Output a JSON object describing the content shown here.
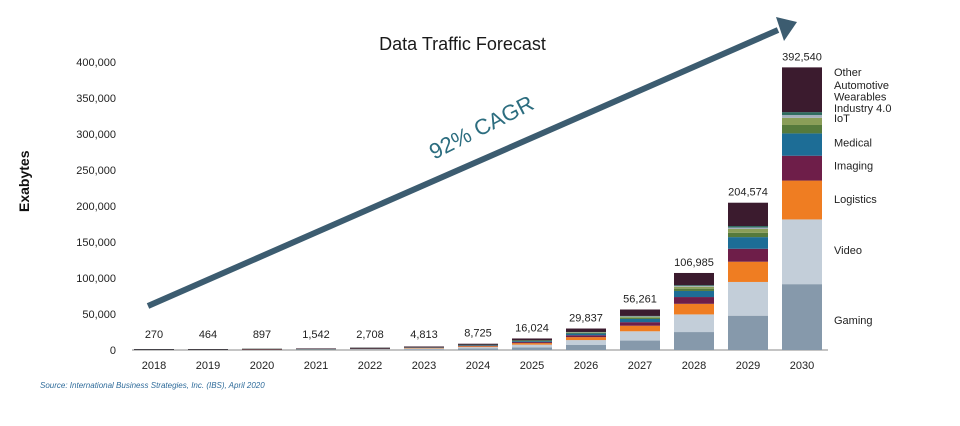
{
  "chart_data": {
    "type": "bar",
    "stacked": true,
    "title": "Data Traffic Forecast",
    "ylabel": "Exabytes",
    "xlabel": "",
    "ylim": [
      0,
      400000
    ],
    "yticks": [
      0,
      50000,
      100000,
      150000,
      200000,
      250000,
      300000,
      350000,
      400000
    ],
    "ytick_labels": [
      "0",
      "50,000",
      "100,000",
      "150,000",
      "200,000",
      "250,000",
      "300,000",
      "350,000",
      "400,000"
    ],
    "categories": [
      "2018",
      "2019",
      "2020",
      "2021",
      "2022",
      "2023",
      "2024",
      "2025",
      "2026",
      "2027",
      "2028",
      "2029",
      "2030"
    ],
    "totals": [
      270,
      464,
      897,
      1542,
      2708,
      4813,
      8725,
      16024,
      29837,
      56261,
      106985,
      204574,
      392540
    ],
    "total_labels": [
      "270",
      "464",
      "897",
      "1,542",
      "2,708",
      "4,813",
      "8,725",
      "16,024",
      "29,837",
      "56,261",
      "106,985",
      "204,574",
      "392,540"
    ],
    "segment_order": [
      "Gaming",
      "Video",
      "Logistics",
      "Imaging",
      "Medical",
      "IoT",
      "Industry 4.0",
      "Wearables",
      "Automotive",
      "Other"
    ],
    "series": [
      {
        "name": "Gaming",
        "color": "#8699ab",
        "values": [
          63,
          108,
          209,
          359,
          631,
          1122,
          2033,
          3734,
          6952,
          13109,
          24926,
          47662,
          91462
        ]
      },
      {
        "name": "Video",
        "color": "#c3ced9",
        "values": [
          62,
          106,
          205,
          353,
          620,
          1102,
          1998,
          3669,
          6832,
          12882,
          24495,
          46833,
          89876
        ]
      },
      {
        "name": "Logistics",
        "color": "#ef7d22",
        "values": [
          37,
          64,
          123,
          212,
          372,
          662,
          1200,
          2203,
          4102,
          7734,
          14708,
          28126,
          53968
        ]
      },
      {
        "name": "Imaging",
        "color": "#6e1e49",
        "values": [
          24,
          41,
          79,
          136,
          238,
          424,
          767,
          1409,
          2624,
          4948,
          9408,
          17990,
          34519
        ]
      },
      {
        "name": "Medical",
        "color": "#1d6d96",
        "values": [
          21,
          37,
          71,
          122,
          214,
          380,
          690,
          1267,
          2358,
          4445,
          8453,
          16163,
          31012
        ]
      },
      {
        "name": "IoT",
        "color": "#567a3c",
        "values": [
          8,
          14,
          27,
          46,
          81,
          143,
          260,
          477,
          888,
          1675,
          3183,
          6088,
          11683
        ]
      },
      {
        "name": "Industry 4.0",
        "color": "#8a9e58",
        "values": [
          7,
          12,
          23,
          39,
          68,
          122,
          221,
          406,
          756,
          1426,
          2710,
          5182,
          9943
        ]
      },
      {
        "name": "Wearables",
        "color": "#a4b0bc",
        "values": [
          3,
          5,
          9,
          16,
          27,
          49,
          88,
          161,
          301,
          567,
          1078,
          2062,
          3957
        ]
      },
      {
        "name": "Automotive",
        "color": "#2e6b5e",
        "values": [
          3,
          5,
          9,
          16,
          27,
          49,
          88,
          161,
          301,
          567,
          1078,
          2062,
          3957
        ]
      },
      {
        "name": "Other",
        "color": "#3b1b2e",
        "values": [
          42,
          72,
          142,
          243,
          430,
          760,
          1380,
          2537,
          4723,
          8908,
          16946,
          32406,
          62163
        ]
      }
    ],
    "right_labels": [
      {
        "text": "Other",
        "value": 386000
      },
      {
        "text": "Automotive",
        "value": 368000
      },
      {
        "text": "Wearables",
        "value": 352000
      },
      {
        "text": "Industry 4.0",
        "value": 336000
      },
      {
        "text": "IoT",
        "value": 322000
      },
      {
        "text": "Medical",
        "value": 288000
      },
      {
        "text": "Imaging",
        "value": 256000
      },
      {
        "text": "Logistics",
        "value": 210000
      },
      {
        "text": "Video",
        "value": 139000
      },
      {
        "text": "Gaming",
        "value": 42000
      }
    ],
    "annotation": {
      "text": "92% CAGR",
      "arrow_color": "#3c5c70",
      "text_color": "#2c6d7f"
    },
    "source": "Source:  International Business Strategies, Inc. (IBS), April 2020"
  }
}
